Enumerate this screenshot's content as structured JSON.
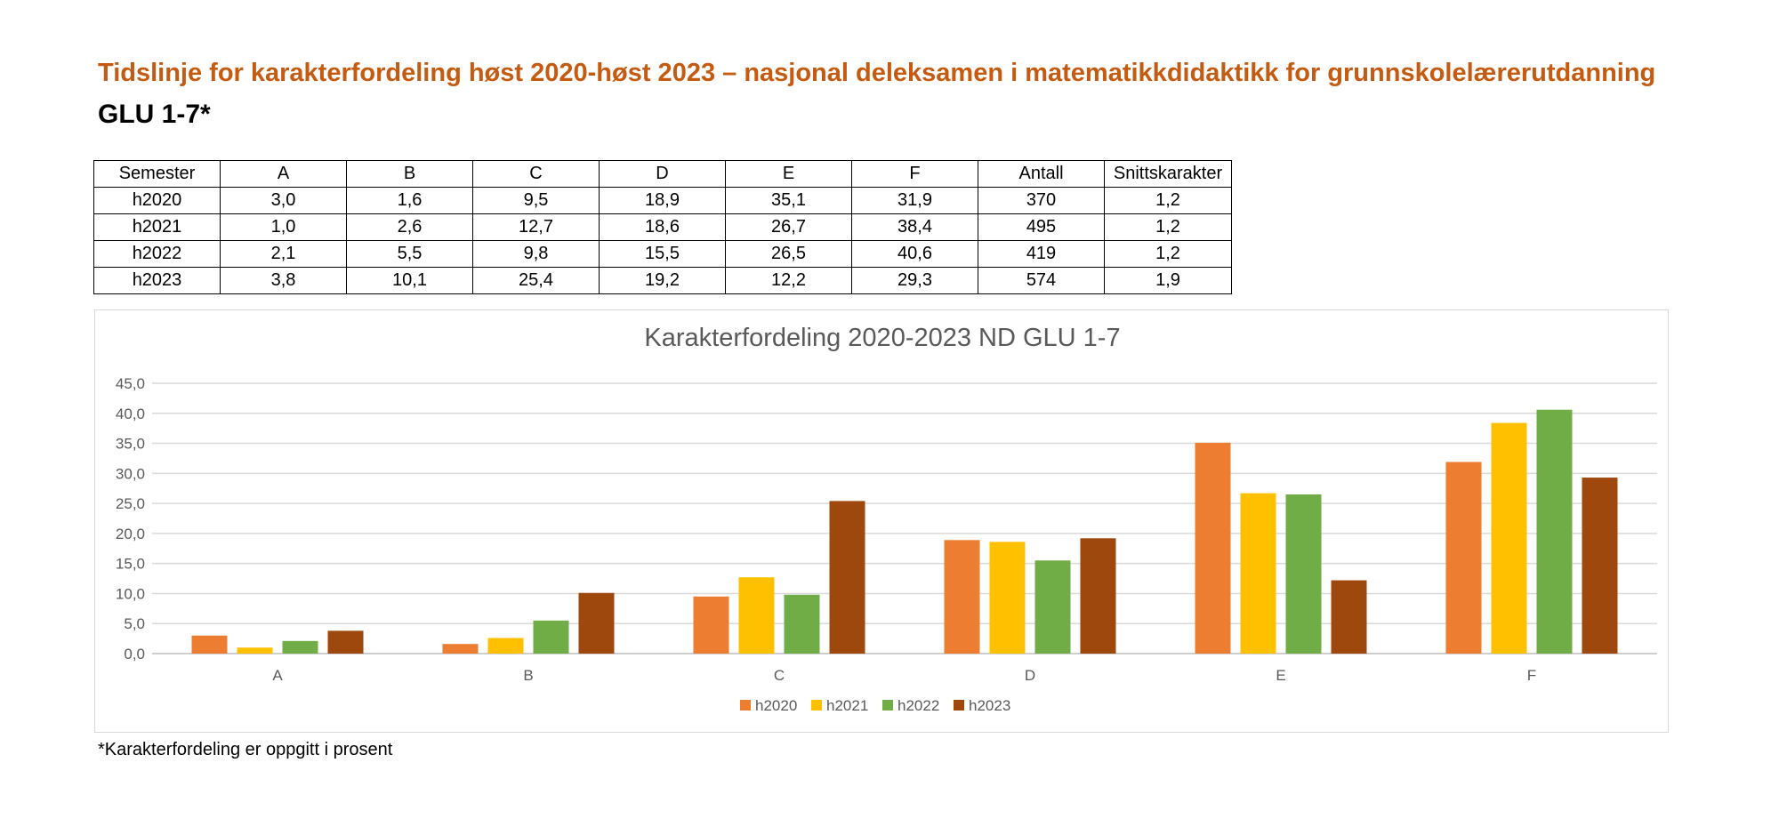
{
  "heading": {
    "title": "Tidslinje for karakterfordeling høst 2020-høst 2023 – nasjonal deleksamen i matematikkdidaktikk for grunnskolelærerutdanning",
    "subtitle": "GLU 1-7*"
  },
  "table": {
    "headers": [
      "Semester",
      "A",
      "B",
      "C",
      "D",
      "E",
      "F",
      "Antall",
      "Snittskarakter"
    ],
    "rows": [
      [
        "h2020",
        "3,0",
        "1,6",
        "9,5",
        "18,9",
        "35,1",
        "31,9",
        "370",
        "1,2"
      ],
      [
        "h2021",
        "1,0",
        "2,6",
        "12,7",
        "18,6",
        "26,7",
        "38,4",
        "495",
        "1,2"
      ],
      [
        "h2022",
        "2,1",
        "5,5",
        "9,8",
        "15,5",
        "26,5",
        "40,6",
        "419",
        "1,2"
      ],
      [
        "h2023",
        "3,8",
        "10,1",
        "25,4",
        "19,2",
        "12,2",
        "29,3",
        "574",
        "1,9"
      ]
    ]
  },
  "chart_data": {
    "type": "bar",
    "title": "Karakterfordeling 2020-2023 ND GLU 1-7",
    "xlabel": "",
    "ylabel": "",
    "categories": [
      "A",
      "B",
      "C",
      "D",
      "E",
      "F"
    ],
    "ylim": [
      0,
      45
    ],
    "yticks": [
      "0,0",
      "5,0",
      "10,0",
      "15,0",
      "20,0",
      "25,0",
      "30,0",
      "35,0",
      "40,0",
      "45,0"
    ],
    "grid": true,
    "legend_position": "bottom",
    "series": [
      {
        "name": "h2020",
        "color": "#ed7d31",
        "values": [
          3.0,
          1.6,
          9.5,
          18.9,
          35.1,
          31.9
        ]
      },
      {
        "name": "h2021",
        "color": "#ffc000",
        "values": [
          1.0,
          2.6,
          12.7,
          18.6,
          26.7,
          38.4
        ]
      },
      {
        "name": "h2022",
        "color": "#70ad47",
        "values": [
          2.1,
          5.5,
          9.8,
          15.5,
          26.5,
          40.6
        ]
      },
      {
        "name": "h2023",
        "color": "#9e480e",
        "values": [
          3.8,
          10.1,
          25.4,
          19.2,
          12.2,
          29.3
        ]
      }
    ]
  },
  "footnote": "*Karakterfordeling er oppgitt i prosent"
}
